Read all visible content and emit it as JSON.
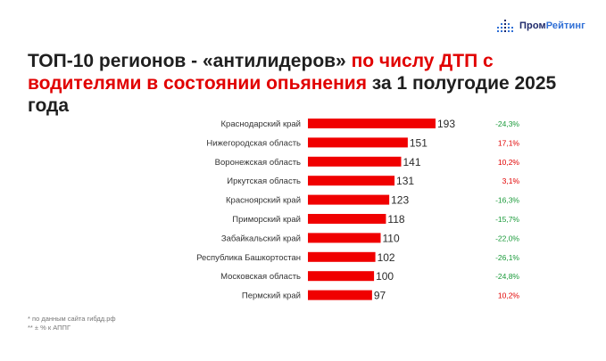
{
  "brand": {
    "part1": "Пром",
    "part2": "Рейтинг",
    "color_dark": "#1f2a6b",
    "color_light": "#2f6fd6"
  },
  "title": {
    "part1": "ТОП-10 регионов - «антилидеров»",
    "part2": "по числу ДТП с водителями в состоянии опьянения",
    "part3": "за 1 полугодие 2025 года"
  },
  "notes": {
    "source": "* по данным сайта гибдд.рф",
    "change": "** ± % к АППГ"
  },
  "colors": {
    "bar": "#f00000",
    "positive": "#e10000",
    "negative": "#1a9a3a"
  },
  "chart_data": {
    "type": "bar",
    "orientation": "horizontal",
    "categories": [
      "Краснодарский край",
      "Нижегородская область",
      "Воронежская область",
      "Иркутская область",
      "Красноярский край",
      "Приморский край",
      "Забайкальский край",
      "Республика Башкортостан",
      "Московская область",
      "Пермский край"
    ],
    "values": [
      193,
      151,
      141,
      131,
      123,
      118,
      110,
      102,
      100,
      97
    ],
    "changes": [
      "-24,3%",
      "17,1%",
      "10,2%",
      "3,1%",
      "-16,3%",
      "-15,7%",
      "-22,0%",
      "-26,1%",
      "-24,8%",
      "10,2%"
    ],
    "title": "",
    "xlabel": "",
    "ylabel": ""
  }
}
